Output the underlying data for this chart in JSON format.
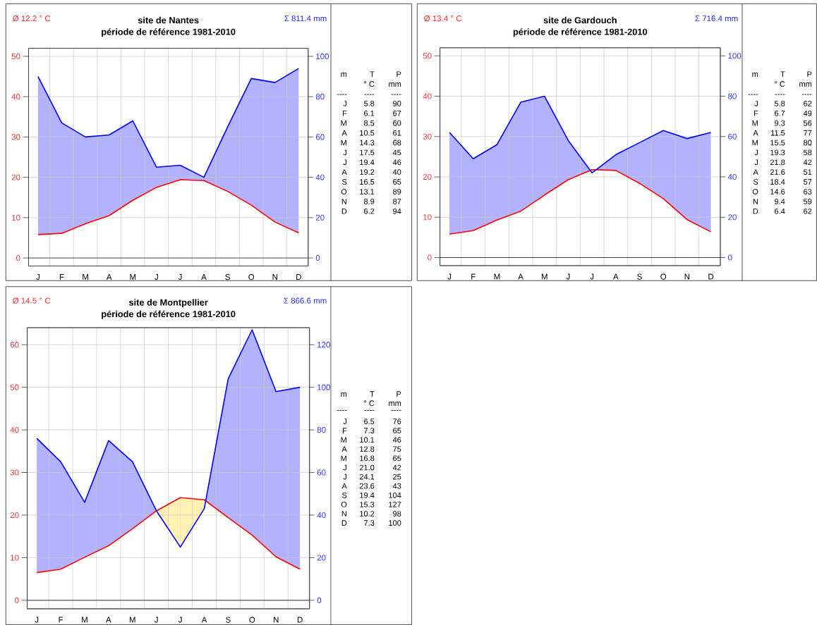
{
  "chart_data": [
    {
      "type": "line",
      "title": "site de Nantes",
      "subtitle": "période de référence 1981-2010",
      "categories": [
        "J",
        "F",
        "M",
        "A",
        "M",
        "J",
        "J",
        "A",
        "S",
        "O",
        "N",
        "D"
      ],
      "series": [
        {
          "color": "#ff0000",
          "values": [
            5.8,
            6.1,
            8.5,
            10.5,
            14.3,
            17.5,
            19.4,
            19.2,
            16.5,
            13.1,
            8.9,
            6.2
          ]
        },
        {
          "color": "#0000ff",
          "axis": "y2",
          "values": [
            90,
            67,
            60,
            61,
            68,
            45,
            46,
            40,
            65,
            89,
            87,
            94
          ],
          "lower": [
            11.6,
            12.2,
            17,
            21,
            28.6,
            35,
            38.8,
            38.4,
            33,
            26.2,
            17.8,
            12.4
          ],
          "upper": [
            90,
            67,
            60,
            61,
            68,
            45,
            46,
            40,
            65,
            89,
            87,
            94
          ]
        }
      ],
      "ylim": [
        -2,
        52
      ],
      "yticks": [
        0,
        10,
        20,
        30,
        40,
        50
      ],
      "y2lim": [
        -4,
        104
      ],
      "y2ticks": [
        0,
        20,
        40,
        60,
        80,
        100
      ],
      "grid": true,
      "ref_lines": [
        {
          "axis": "y",
          "value": 0,
          "color": "#404040"
        }
      ],
      "annotations": [
        "Ø 12.2 ° C",
        "Σ 811.4 mm",
        "m",
        "T",
        "P",
        "° C",
        "mm",
        "----",
        "----",
        "----",
        "5.8",
        "90",
        "6.1",
        "67",
        "8.5",
        "60",
        "10.5",
        "61",
        "14.3",
        "68",
        "17.5",
        "45",
        "19.4",
        "46",
        "19.2",
        "40",
        "16.5",
        "65",
        "13.1",
        "89",
        "8.9",
        "87",
        "6.2",
        "94"
      ]
    },
    {
      "type": "line",
      "title": "site de Gardouch",
      "subtitle": "période de référence 1981-2010",
      "categories": [
        "J",
        "F",
        "M",
        "A",
        "M",
        "J",
        "J",
        "A",
        "S",
        "O",
        "N",
        "D"
      ],
      "series": [
        {
          "color": "#ff0000",
          "values": [
            5.8,
            6.7,
            9.3,
            11.5,
            15.5,
            19.3,
            21.8,
            21.6,
            18.4,
            14.6,
            9.4,
            6.4
          ]
        },
        {
          "color": "#0000ff",
          "axis": "y2",
          "values": [
            62,
            49,
            56,
            77,
            80,
            58,
            42,
            51,
            57,
            63,
            59,
            62
          ],
          "lower": [
            11.6,
            13.4,
            18.6,
            23,
            31,
            38.6,
            43.6,
            43.2,
            36.8,
            29.2,
            18.8,
            12.8
          ],
          "upper": [
            62,
            49,
            56,
            77,
            80,
            58,
            42,
            51,
            57,
            63,
            59,
            62
          ]
        }
      ],
      "ylim": [
        -2,
        52
      ],
      "yticks": [
        0,
        10,
        20,
        30,
        40,
        50
      ],
      "y2lim": [
        -4,
        104
      ],
      "y2ticks": [
        0,
        20,
        40,
        60,
        80,
        100
      ],
      "grid": true,
      "ref_lines": [
        {
          "axis": "y",
          "value": 0,
          "color": "#404040"
        }
      ],
      "annotations": [
        "Ø 13.4 ° C",
        "Σ 716.4 mm",
        "m",
        "T",
        "P",
        "° C",
        "mm",
        "----",
        "----",
        "----",
        "5.8",
        "62",
        "6.7",
        "49",
        "9.3",
        "56",
        "11.5",
        "77",
        "15.5",
        "80",
        "19.3",
        "58",
        "21.8",
        "42",
        "21.6",
        "51",
        "18.4",
        "57",
        "14.6",
        "63",
        "9.4",
        "59",
        "6.4",
        "62"
      ]
    },
    {
      "type": "line",
      "title": "site de Montpellier",
      "subtitle": "période de référence 1981-2010",
      "categories": [
        "J",
        "F",
        "M",
        "A",
        "M",
        "J",
        "J",
        "A",
        "S",
        "O",
        "N",
        "D"
      ],
      "series": [
        {
          "color": "#ff0000",
          "values": [
            6.5,
            7.3,
            10.1,
            12.8,
            16.8,
            21.0,
            24.1,
            23.6,
            19.4,
            15.3,
            10.2,
            7.3
          ]
        },
        {
          "color": "#0000ff",
          "axis": "y2",
          "values": [
            76,
            65,
            46,
            75,
            65,
            42,
            25,
            43,
            104,
            127,
            98,
            100
          ],
          "lower": [
            13,
            14.6,
            20.2,
            25.6,
            33.6,
            42,
            48.2,
            47.2,
            38.8,
            30.6,
            20.4,
            14.6
          ],
          "upper": [
            76,
            65,
            46,
            75,
            65,
            42,
            25,
            43,
            104,
            127,
            98,
            100
          ]
        }
      ],
      "ylim": [
        -2,
        64
      ],
      "yticks": [
        0,
        10,
        20,
        30,
        40,
        50,
        60
      ],
      "y2lim": [
        -4,
        128
      ],
      "y2ticks": [
        0,
        20,
        40,
        60,
        80,
        100,
        120
      ],
      "grid": true,
      "ref_lines": [
        {
          "axis": "y",
          "value": 0,
          "color": "#404040"
        }
      ],
      "annotations": [
        "Ø 14.5 ° C",
        "Σ 866.6 mm",
        "m",
        "T",
        "P",
        "° C",
        "mm",
        "----",
        "----",
        "----",
        "6.5",
        "76",
        "7.3",
        "65",
        "10.1",
        "46",
        "12.8",
        "75",
        "16.8",
        "65",
        "21.0",
        "42",
        "24.1",
        "25",
        "23.6",
        "43",
        "19.4",
        "104",
        "15.3",
        "127",
        "10.2",
        "98",
        "7.3",
        "100"
      ]
    }
  ]
}
